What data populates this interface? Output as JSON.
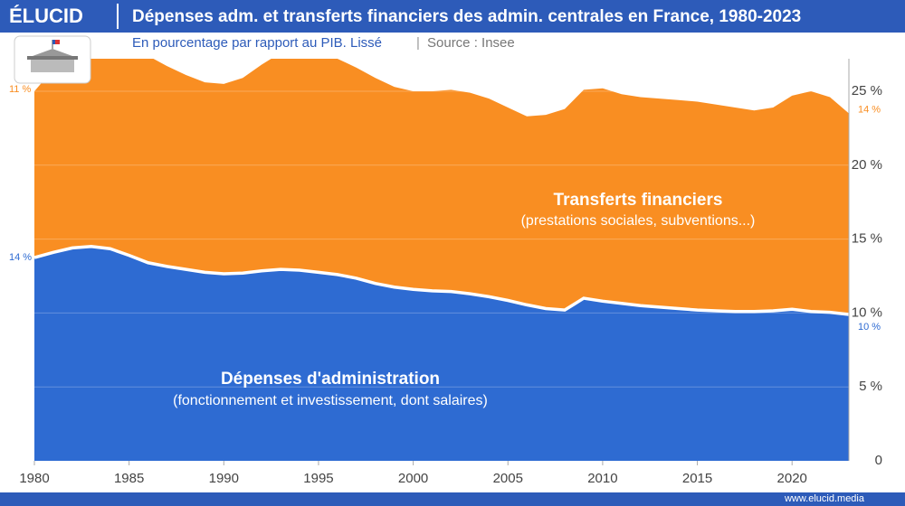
{
  "brand": "ÉLUCID",
  "footer": "www.elucid.media",
  "chart_data": {
    "type": "stacked-area",
    "title": "Dépenses adm. et transferts financiers des admin. centrales en France, 1980-2023",
    "subtitle": "En pourcentage par rapport au PIB. Lissé",
    "source": "Source : Insee",
    "x": [
      1980,
      1981,
      1982,
      1983,
      1984,
      1985,
      1986,
      1987,
      1988,
      1989,
      1990,
      1991,
      1992,
      1993,
      1994,
      1995,
      1996,
      1997,
      1998,
      1999,
      2000,
      2001,
      2002,
      2003,
      2004,
      2005,
      2006,
      2007,
      2008,
      2009,
      2010,
      2011,
      2012,
      2013,
      2014,
      2015,
      2016,
      2017,
      2018,
      2019,
      2020,
      2021,
      2022,
      2023
    ],
    "xlim": [
      1980,
      2023
    ],
    "xticks": [
      1980,
      1985,
      1990,
      1995,
      2000,
      2005,
      2010,
      2015,
      2020
    ],
    "ylim": [
      0,
      27.2
    ],
    "yticks": [
      0,
      {
        "value": 5,
        "label": "5 %"
      },
      {
        "value": 10,
        "label": "10 %"
      },
      {
        "value": 15,
        "label": "15 %"
      },
      {
        "value": 20,
        "label": "20 %"
      },
      {
        "value": 25,
        "label": "25 %"
      }
    ],
    "grid": true,
    "series": [
      {
        "name": "Dépenses d'administration",
        "description": "(fonctionnement et investissement, dont salaires)",
        "color": "#2e6bd2",
        "values": [
          13.75,
          14.1,
          14.4,
          14.5,
          14.35,
          13.9,
          13.4,
          13.15,
          12.95,
          12.75,
          12.65,
          12.7,
          12.85,
          12.95,
          12.9,
          12.75,
          12.6,
          12.35,
          12.0,
          11.75,
          11.6,
          11.5,
          11.45,
          11.3,
          11.1,
          10.85,
          10.55,
          10.3,
          10.2,
          11.0,
          10.8,
          10.65,
          10.5,
          10.4,
          10.3,
          10.2,
          10.15,
          10.1,
          10.1,
          10.15,
          10.25,
          10.1,
          10.05,
          9.9
        ],
        "value_labels": [
          "14 %",
          null,
          null,
          null,
          null,
          null,
          null,
          null,
          null,
          null,
          null,
          null,
          null,
          null,
          null,
          null,
          null,
          null,
          null,
          null,
          null,
          null,
          null,
          null,
          null,
          null,
          null,
          null,
          null,
          null,
          null,
          null,
          null,
          null,
          null,
          null,
          null,
          null,
          null,
          null,
          null,
          null,
          null,
          "10 %"
        ]
      },
      {
        "name": "Transferts financiers",
        "description": "(prestations sociales, subventions...)",
        "color": "#f98e22",
        "values": [
          11.25,
          12.4,
          13.1,
          13.3,
          13.55,
          13.9,
          14.0,
          13.55,
          13.15,
          12.85,
          12.85,
          13.2,
          13.95,
          14.65,
          15.1,
          15.05,
          14.6,
          14.25,
          13.9,
          13.55,
          13.4,
          13.5,
          13.65,
          13.6,
          13.4,
          13.05,
          12.75,
          13.1,
          13.6,
          14.1,
          14.4,
          14.15,
          14.1,
          14.1,
          14.1,
          14.1,
          13.95,
          13.8,
          13.6,
          13.75,
          14.45,
          14.9,
          14.55,
          13.6
        ],
        "value_labels": [
          "11 %",
          null,
          null,
          null,
          null,
          null,
          null,
          null,
          null,
          null,
          null,
          null,
          null,
          null,
          null,
          null,
          null,
          null,
          null,
          null,
          null,
          null,
          null,
          null,
          null,
          null,
          null,
          null,
          null,
          null,
          null,
          null,
          null,
          null,
          null,
          null,
          null,
          null,
          null,
          null,
          null,
          null,
          null,
          "14 %"
        ]
      }
    ]
  }
}
